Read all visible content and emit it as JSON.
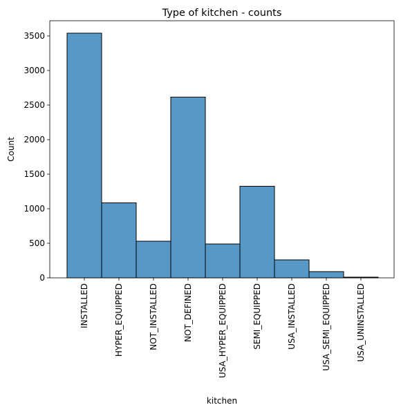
{
  "chart_data": {
    "type": "bar",
    "title": "Type of kitchen - counts",
    "xlabel": "kitchen",
    "ylabel": "Count",
    "categories": [
      "INSTALLED",
      "HYPER_EQUIPPED",
      "NOT_INSTALLED",
      "NOT_DEFINED",
      "USA_HYPER_EQUIPPED",
      "SEMI_EQUIPPED",
      "USA_INSTALLED",
      "USA_SEMI_EQUIPPED",
      "USA_UNINSTALLED"
    ],
    "values": [
      3540,
      1085,
      530,
      2615,
      490,
      1325,
      260,
      90,
      10
    ],
    "ylim": [
      0,
      3720
    ],
    "yticks": [
      0,
      500,
      1000,
      1500,
      2000,
      2500,
      3000,
      3500
    ],
    "grid": false,
    "legend": "none",
    "colors": {
      "bar_fill": "#5799c6",
      "bar_edge": "#000000"
    }
  }
}
